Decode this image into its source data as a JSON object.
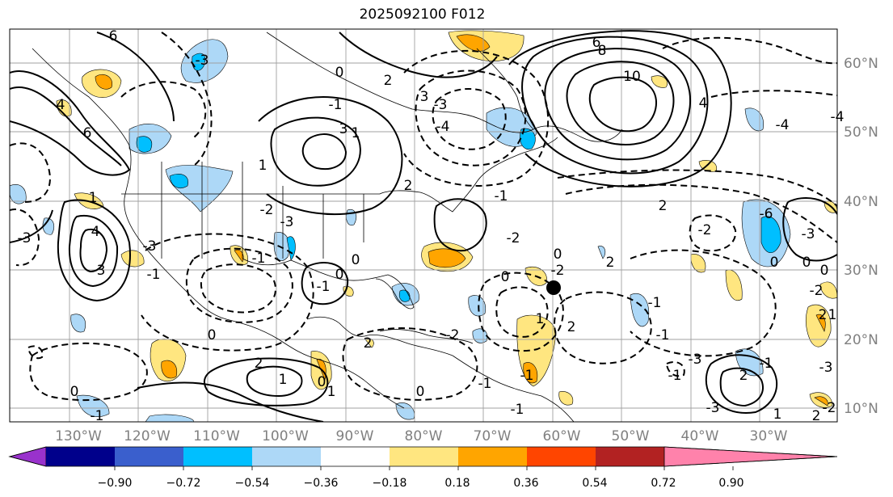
{
  "title": "2025092100 F012",
  "latitude_labels": [
    "60°N",
    "50°N",
    "40°N",
    "30°N",
    "20°N",
    "10°N"
  ],
  "longitude_labels": [
    "130°W",
    "120°W",
    "110°W",
    "100°W",
    "90°W",
    "80°W",
    "70°W",
    "60°W",
    "50°W",
    "40°W",
    "30°W"
  ],
  "colorbar": {
    "ticks": [
      "−0.90",
      "−0.72",
      "−0.54",
      "−0.36",
      "−0.18",
      "0.18",
      "0.36",
      "0.54",
      "0.72",
      "0.90"
    ],
    "colors": [
      "#9932cc",
      "#00008b",
      "#3a5fcd",
      "#00bfff",
      "#add8f7",
      "#ffffff",
      "#ffe680",
      "#ffa500",
      "#ff4500",
      "#b22222",
      "#ff82ab"
    ]
  },
  "contour_labels": [
    "6",
    "-3",
    "4",
    "6",
    "-3",
    "3",
    "1",
    "-3",
    "-2",
    "1",
    "2",
    "3",
    "-4",
    "-3",
    "0",
    "-1",
    "2",
    "6",
    "8",
    "10",
    "4",
    "-4",
    "2",
    "-1",
    "-2",
    "-3",
    "-6",
    "-4",
    "4",
    "1",
    "3",
    "-3",
    "0",
    "-1",
    "-1",
    "-1",
    "0",
    "0",
    "2",
    "1",
    "-2",
    "2",
    "-3",
    "2",
    "-1",
    "-3",
    "0",
    "0",
    "-2",
    "0",
    "2",
    "0",
    "-2",
    "0",
    "-1",
    "1",
    "0",
    "2",
    "1",
    "-1",
    "-1",
    "2",
    "-2",
    "-1",
    "2",
    "0",
    "-1",
    "-1",
    "0",
    "-2",
    "1",
    "-3",
    "1",
    "-1"
  ]
}
